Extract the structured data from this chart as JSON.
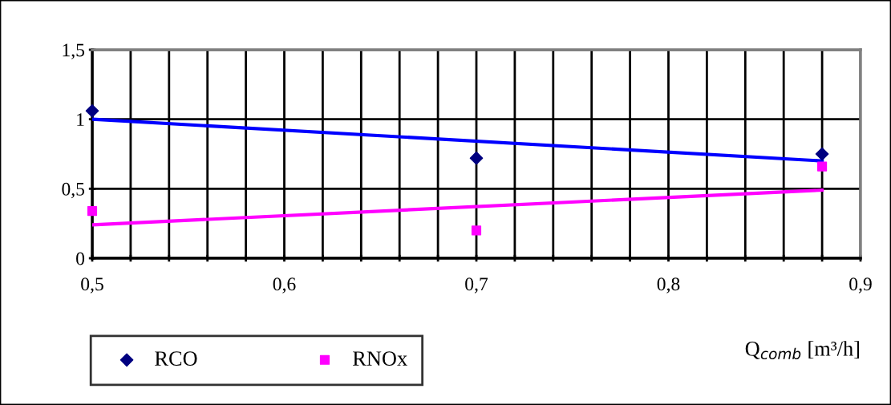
{
  "chart_data": {
    "type": "scatter",
    "xlabel": "Q$_{comb}$ [m³/h]",
    "xlim": [
      0.5,
      0.9
    ],
    "ylim": [
      0,
      1.5
    ],
    "xticks": [
      {
        "value": 0.5,
        "label": "0,5"
      },
      {
        "value": 0.52,
        "label": null
      },
      {
        "value": 0.54,
        "label": null
      },
      {
        "value": 0.56,
        "label": null
      },
      {
        "value": 0.58,
        "label": null
      },
      {
        "value": 0.6,
        "label": "0,6"
      },
      {
        "value": 0.62,
        "label": null
      },
      {
        "value": 0.64,
        "label": null
      },
      {
        "value": 0.66,
        "label": null
      },
      {
        "value": 0.68,
        "label": null
      },
      {
        "value": 0.7,
        "label": "0,7"
      },
      {
        "value": 0.72,
        "label": null
      },
      {
        "value": 0.74,
        "label": null
      },
      {
        "value": 0.76,
        "label": null
      },
      {
        "value": 0.78,
        "label": null
      },
      {
        "value": 0.8,
        "label": "0,8"
      },
      {
        "value": 0.82,
        "label": null
      },
      {
        "value": 0.84,
        "label": null
      },
      {
        "value": 0.86,
        "label": null
      },
      {
        "value": 0.88,
        "label": null
      },
      {
        "value": 0.9,
        "label": "0,9"
      }
    ],
    "yticks": [
      0,
      {
        "value": 0.5,
        "label": "0,5"
      },
      1,
      {
        "value": 1.5,
        "label": "1,5"
      }
    ],
    "grid": true,
    "legend": "bottom left",
    "series": [
      {
        "name": "RCO",
        "marker": "diamond",
        "color": "#000080",
        "x": [
          0.5,
          0.7,
          0.88
        ],
        "values": [
          1.06,
          0.72,
          0.75
        ]
      },
      {
        "name": "RNOx",
        "marker": "square",
        "color": "#ff00ff",
        "x": [
          0.5,
          0.7,
          0.88
        ],
        "values": [
          0.34,
          0.2,
          0.66
        ]
      },
      {
        "type": "line",
        "color": "#0000ff",
        "x": [
          0.5,
          0.88
        ],
        "values": [
          1.0,
          0.7
        ]
      },
      {
        "type": "line",
        "color": "#ff00ff",
        "x": [
          0.5,
          0.88
        ],
        "values": [
          0.24,
          0.49
        ]
      }
    ]
  }
}
